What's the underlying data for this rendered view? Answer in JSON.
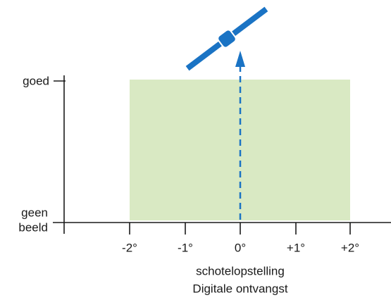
{
  "y_labels": {
    "top": "goed",
    "bottom": [
      "geen",
      "beeld"
    ]
  },
  "x_labels": [
    "-2°",
    "-1°",
    "0°",
    "+1°",
    "+2°"
  ],
  "axis_title": [
    "schotelopstelling",
    "Digitale ontvangst"
  ]
}
